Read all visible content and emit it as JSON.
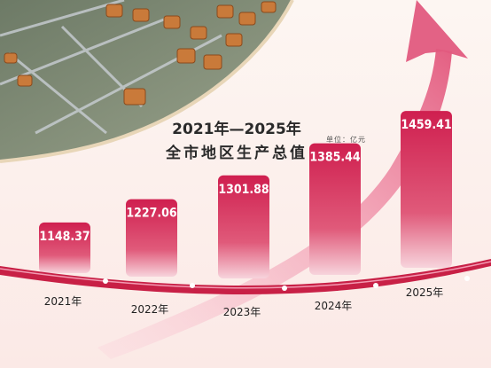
{
  "chart_data": {
    "type": "bar",
    "title": "2021年—2025年",
    "subtitle": "全市地区生产总值",
    "unit": "单位：亿元",
    "categories": [
      "2021年",
      "2022年",
      "2023年",
      "2024年",
      "2025年"
    ],
    "values": [
      1148.37,
      1227.06,
      1301.88,
      1385.44,
      1459.41
    ],
    "value_labels": [
      "1148.37",
      "1227.06",
      "1301.88",
      "1385.44",
      "1459.41"
    ],
    "ylim": [
      1000,
      1500
    ],
    "grid": false,
    "colors": {
      "bar_top": "#d02050",
      "bar_bottom": "#f3b5c4",
      "arrow": "#e66b8a",
      "ribbon": "#c82046",
      "factory_floor": "#7e8a72"
    }
  }
}
